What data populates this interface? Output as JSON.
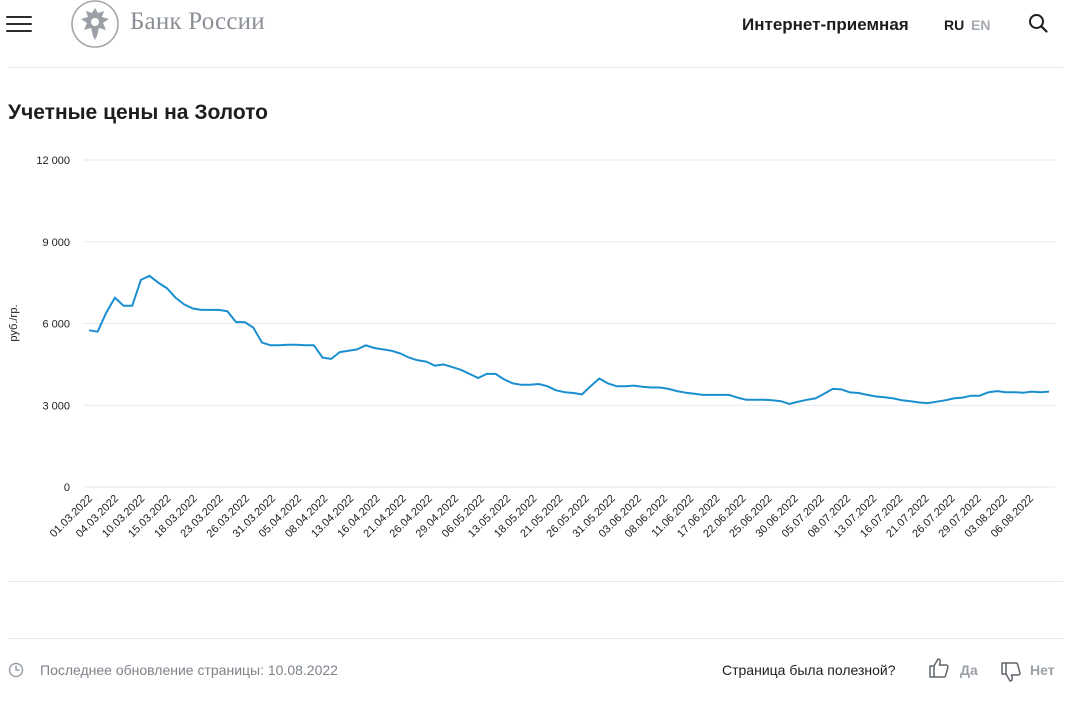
{
  "header": {
    "logo_text": "Банк России",
    "reception_link": "Интернет-приемная",
    "lang_ru": "RU",
    "lang_en": "EN"
  },
  "page": {
    "title": "Учетные цены на Золото"
  },
  "colors": {
    "line": "#1a8fcf",
    "grid": "#e6e8ea",
    "text": "#1d1d1d",
    "muted": "#7d838a"
  },
  "chart_data": {
    "type": "line",
    "title": "",
    "xlabel": "",
    "ylabel": "руб./гр.",
    "ylim": [
      0,
      12000
    ],
    "yticks": [
      0,
      3000,
      6000,
      9000,
      12000
    ],
    "ytick_labels": [
      "0",
      "3 000",
      "6 000",
      "9 000",
      "12 000"
    ],
    "grid": true,
    "xtick_labels": [
      "01.03.2022",
      "04.03.2022",
      "10.03.2022",
      "15.03.2022",
      "18.03.2022",
      "23.03.2022",
      "26.03.2022",
      "31.03.2022",
      "05.04.2022",
      "08.04.2022",
      "13.04.2022",
      "16.04.2022",
      "21.04.2022",
      "26.04.2022",
      "29.04.2022",
      "06.05.2022",
      "13.05.2022",
      "18.05.2022",
      "21.05.2022",
      "26.05.2022",
      "31.05.2022",
      "03.06.2022",
      "08.06.2022",
      "11.06.2022",
      "17.06.2022",
      "22.06.2022",
      "25.06.2022",
      "30.06.2022",
      "05.07.2022",
      "08.07.2022",
      "13.07.2022",
      "16.07.2022",
      "21.07.2022",
      "26.07.2022",
      "29.07.2022",
      "03.08.2022",
      "06.08.2022"
    ],
    "series": [
      {
        "name": "Золото",
        "values": [
          5750,
          5700,
          6400,
          6950,
          6650,
          6650,
          7600,
          7750,
          7500,
          7300,
          6950,
          6700,
          6550,
          6500,
          6500,
          6500,
          6450,
          6050,
          6050,
          5850,
          5300,
          5200,
          5200,
          5220,
          5220,
          5200,
          5200,
          4750,
          4700,
          4950,
          5000,
          5050,
          5200,
          5100,
          5050,
          5000,
          4900,
          4750,
          4650,
          4600,
          4450,
          4500,
          4400,
          4300,
          4150,
          4000,
          4150,
          4150,
          3950,
          3800,
          3750,
          3750,
          3780,
          3700,
          3550,
          3480,
          3450,
          3400,
          3700,
          3980,
          3800,
          3700,
          3700,
          3720,
          3680,
          3650,
          3650,
          3600,
          3520,
          3460,
          3420,
          3380,
          3380,
          3380,
          3380,
          3280,
          3200,
          3200,
          3200,
          3180,
          3150,
          3050,
          3130,
          3200,
          3250,
          3420,
          3600,
          3580,
          3470,
          3450,
          3380,
          3320,
          3290,
          3250,
          3180,
          3150,
          3100,
          3080,
          3130,
          3180,
          3250,
          3280,
          3350,
          3350,
          3480,
          3520,
          3480,
          3480,
          3460,
          3500,
          3480,
          3500
        ]
      }
    ]
  },
  "footer": {
    "last_update": "Последнее обновление страницы: 10.08.2022",
    "useful_question": "Страница была полезной?",
    "yes_label": "Да",
    "no_label": "Нет"
  }
}
